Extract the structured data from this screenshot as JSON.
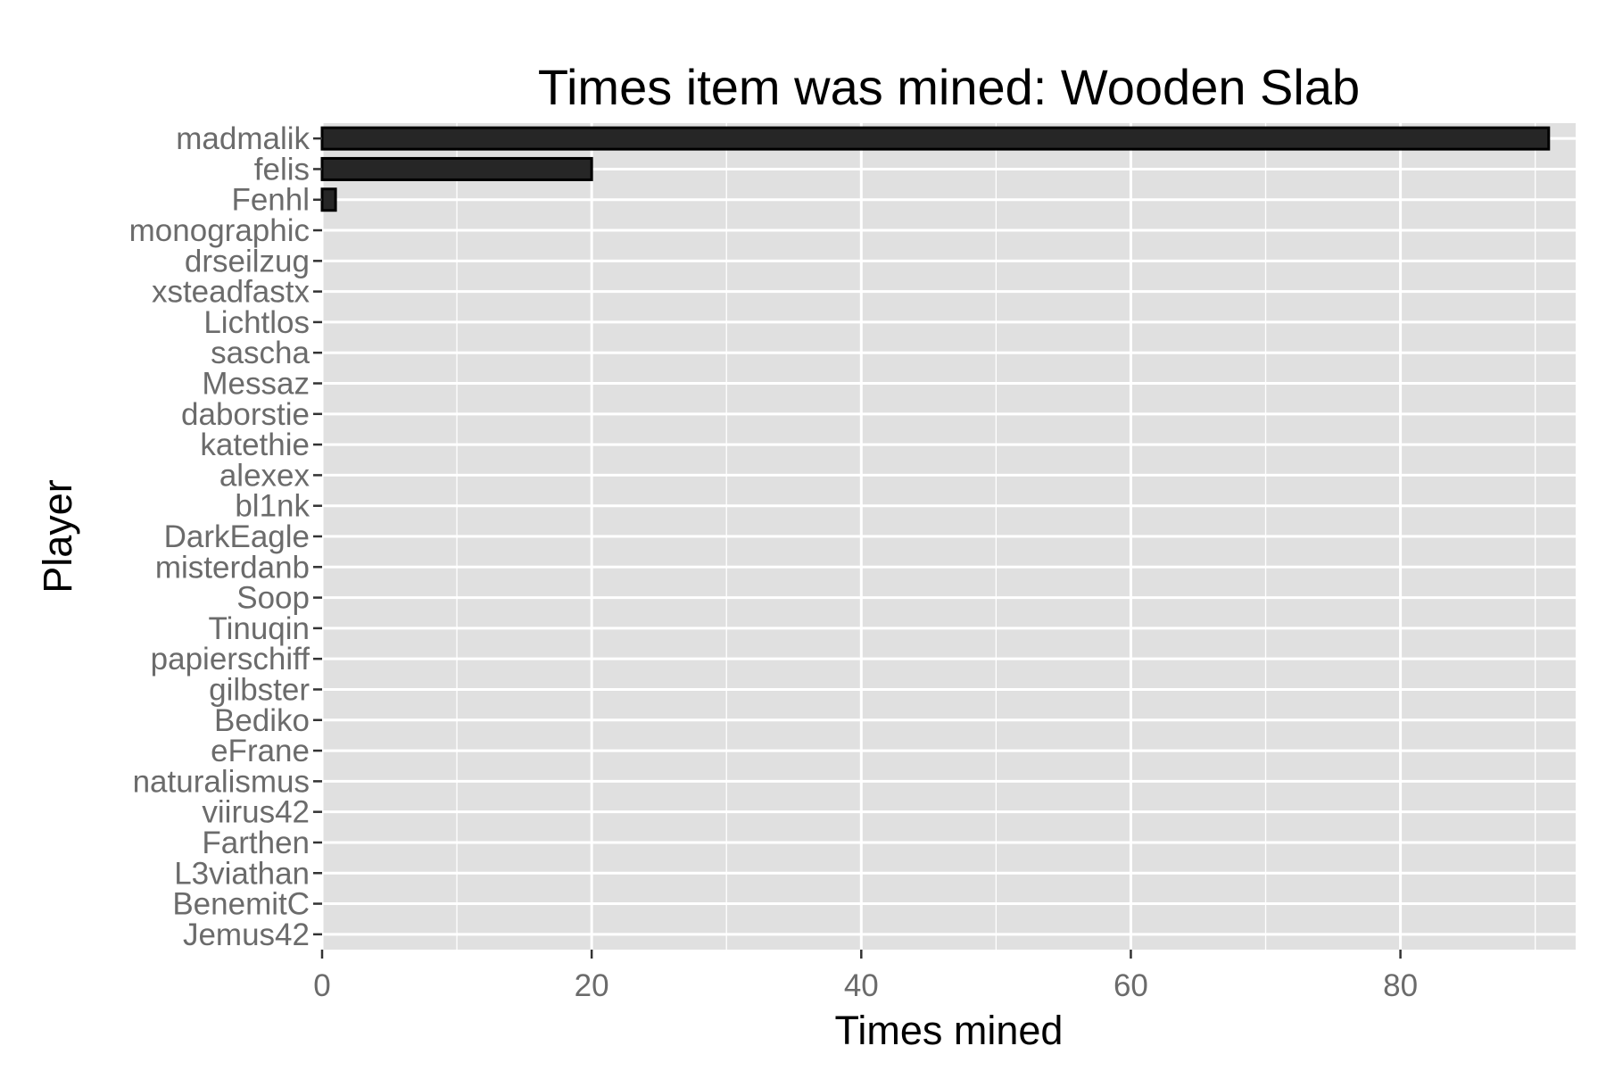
{
  "chart_data": {
    "type": "bar",
    "orientation": "horizontal",
    "title": "Times item was mined: Wooden Slab",
    "xlabel": "Times mined",
    "ylabel": "Player",
    "xlim": [
      0,
      93
    ],
    "xticks": [
      0,
      20,
      40,
      60,
      80
    ],
    "grid": true,
    "legend": "none",
    "colors": {
      "panel": "#e0e0e0",
      "grid": "#ffffff",
      "bar_fill": "#262626",
      "bar_stroke": "#000000",
      "tick_text": "#6b6b6b"
    },
    "categories": [
      "madmalik",
      "felis",
      "Fenhl",
      "monographic",
      "drseilzug",
      "xsteadfastx",
      "Lichtlos",
      "sascha",
      "Messaz",
      "daborstie",
      "katethie",
      "alexex",
      "bl1nk",
      "DarkEagle",
      "misterdanb",
      "Soop",
      "Tinuqin",
      "papierschiff",
      "gilbster",
      "Bediko",
      "eFrane",
      "naturalismus",
      "viirus42",
      "Farthen",
      "L3viathan",
      "BenemitC",
      "Jemus42"
    ],
    "values": [
      91,
      20,
      1,
      0,
      0,
      0,
      0,
      0,
      0,
      0,
      0,
      0,
      0,
      0,
      0,
      0,
      0,
      0,
      0,
      0,
      0,
      0,
      0,
      0,
      0,
      0,
      0
    ]
  }
}
